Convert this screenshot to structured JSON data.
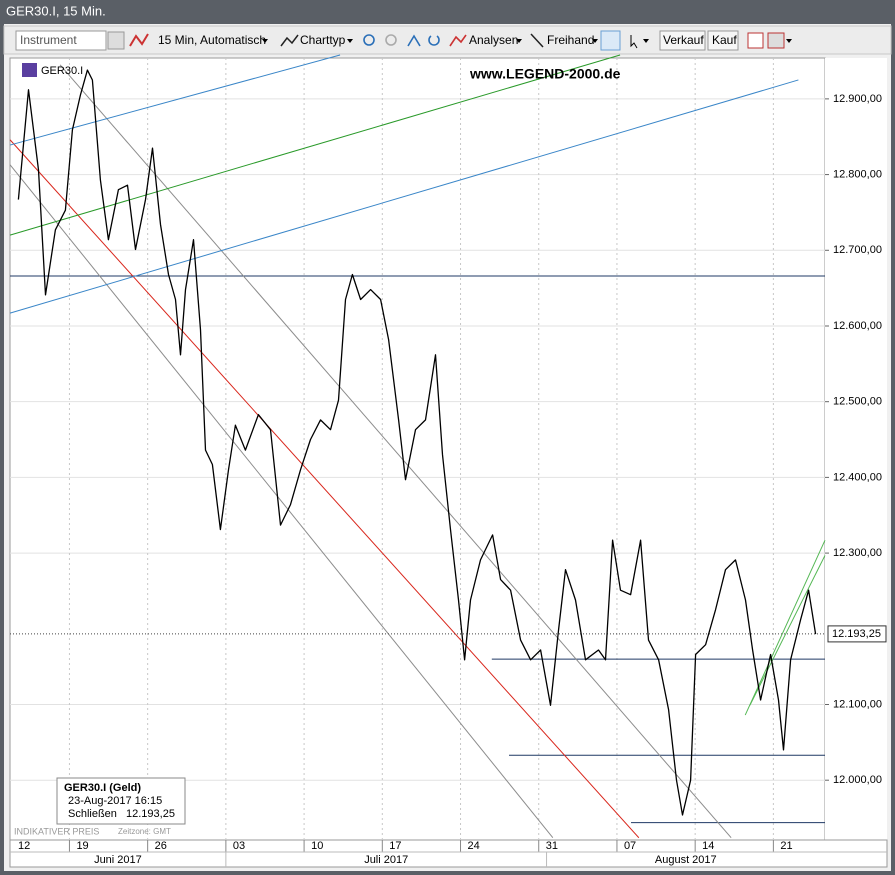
{
  "window": {
    "title": "GER30.I, 15 Min."
  },
  "toolbar": {
    "instrument": "Instrument",
    "interval": "15 Min,  Automatisch",
    "chart_type": "Charttyp",
    "analyses": "Analysen",
    "freehand": "Freihand",
    "sell": "Verkauf",
    "buy": "Kauf"
  },
  "watermark": "www.LEGEND-2000.de",
  "info_box": {
    "title": "GER30.I (Geld)",
    "datetime": "23-Aug-2017 16:15",
    "close_label": "Schließen",
    "close": "12.193,25"
  },
  "footer": {
    "price_note": "INDIKATIVER PREIS",
    "timezone": "Zeitzone: GMT"
  },
  "chart_data": {
    "type": "line",
    "series": [
      {
        "name": "GER30.I",
        "color": "#000000",
        "x": [
          1.74,
          2.38,
          3.02,
          3.47,
          4.1,
          4.74,
          5.19,
          5.7,
          6.15,
          6.47,
          6.98,
          7.49,
          8.13,
          8.71,
          9.22,
          9.86,
          10.31,
          10.82,
          11.33,
          11.78,
          12.1,
          12.42,
          12.93,
          13.38,
          13.7,
          14.14,
          14.65,
          15.17,
          15.61,
          16.25,
          17.08,
          17.85,
          18.49,
          19.13,
          19.77,
          20.41,
          21.05,
          21.69,
          22.2,
          22.65,
          23.09,
          23.61,
          24.25,
          24.89,
          25.4,
          26.04,
          26.48,
          27.12,
          27.76,
          28.4,
          28.85,
          29.36,
          29.87,
          30.26,
          30.64,
          31.28,
          32.05,
          32.56,
          33.2,
          33.84,
          34.48,
          35.12,
          35.75,
          36.27,
          36.71,
          37.35,
          37.99,
          38.82,
          39.27,
          39.72,
          40.23,
          40.87,
          41.51,
          42.02,
          42.66,
          43.3,
          43.81,
          44.19,
          44.71,
          45.03,
          45.67,
          46.3,
          46.94,
          47.58,
          48.22,
          48.67,
          49.18,
          49.82,
          50.33,
          50.65,
          51.1,
          51.74,
          52.25,
          52.7
        ],
        "values": [
          12767,
          12912,
          12806,
          12641,
          12727,
          12753,
          12859,
          12905,
          12938,
          12925,
          12793,
          12714,
          12780,
          12786,
          12701,
          12767,
          12835,
          12734,
          12668,
          12635,
          12562,
          12648,
          12714,
          12595,
          12436,
          12417,
          12331,
          12410,
          12469,
          12436,
          12483,
          12463,
          12337,
          12364,
          12410,
          12450,
          12476,
          12463,
          12502,
          12635,
          12668,
          12635,
          12648,
          12635,
          12582,
          12476,
          12397,
          12463,
          12476,
          12562,
          12430,
          12331,
          12238,
          12159,
          12238,
          12291,
          12324,
          12265,
          12251,
          12185,
          12159,
          12172,
          12099,
          12199,
          12278,
          12238,
          12159,
          12172,
          12159,
          12317,
          12251,
          12245,
          12317,
          12185,
          12159,
          12093,
          12000,
          11954,
          12000,
          12166,
          12179,
          12225,
          12278,
          12291,
          12238,
          12172,
          12106,
          12166,
          12106,
          12040,
          12159,
          12212,
          12251,
          12193
        ]
      }
    ],
    "current_price": {
      "value": 12193.25,
      "label": "12.193,25"
    },
    "drawings": [
      {
        "color": "#1f3864",
        "x": [
          1.2,
          53.3
        ],
        "values": [
          12666,
          12666
        ]
      },
      {
        "color": "#1f3864",
        "x": [
          32.0,
          53.3
        ],
        "values": [
          12160,
          12160
        ]
      },
      {
        "color": "#1f3864",
        "x": [
          33.1,
          53.3
        ],
        "values": [
          12033,
          12033
        ]
      },
      {
        "color": "#1f3864",
        "x": [
          40.9,
          53.3
        ],
        "values": [
          11944,
          11944
        ]
      },
      {
        "color": "#d9261c",
        "x": [
          1.2,
          41.4
        ],
        "values": [
          12846,
          11924
        ]
      },
      {
        "color": "#8c8c8c",
        "x": [
          1.2,
          35.9
        ],
        "values": [
          12813,
          11924
        ]
      },
      {
        "color": "#8c8c8c",
        "x": [
          4.4,
          47.3
        ],
        "values": [
          12945,
          11924
        ]
      },
      {
        "color": "#3a86c8",
        "x": [
          1.2,
          22.3
        ],
        "values": [
          12839,
          12958
        ]
      },
      {
        "color": "#3a86c8",
        "x": [
          1.2,
          51.6
        ],
        "values": [
          12617,
          12925
        ]
      },
      {
        "color": "#2a9a2a",
        "x": [
          1.2,
          40.2
        ],
        "values": [
          12720,
          12958
        ]
      },
      {
        "color": "#55b855",
        "x": [
          48.2,
          53.3
        ],
        "values": [
          12086,
          12317
        ]
      },
      {
        "color": "#55b855",
        "x": [
          48.5,
          53.3
        ],
        "values": [
          12099,
          12297
        ]
      }
    ],
    "xlim": [
      1.2,
      53.3
    ],
    "ylim": [
      11921,
      12954
    ],
    "xticks": [
      {
        "value": 0,
        "label": "12"
      },
      {
        "value": 5,
        "label": "19"
      },
      {
        "value": 10,
        "label": "26"
      },
      {
        "value": 15,
        "label": "03"
      },
      {
        "value": 20,
        "label": "10"
      },
      {
        "value": 25,
        "label": "17"
      },
      {
        "value": 30,
        "label": "24"
      },
      {
        "value": 35,
        "label": "31"
      },
      {
        "value": 40,
        "label": "07"
      },
      {
        "value": 45,
        "label": "14"
      },
      {
        "value": 50,
        "label": "21"
      }
    ],
    "months": [
      "Juni 2017",
      "Juli 2017",
      "August 2017"
    ],
    "yticks": [
      {
        "value": 12000,
        "label": "12.000,00"
      },
      {
        "value": 12100,
        "label": "12.100,00"
      },
      {
        "value": 12300,
        "label": "12.300,00"
      },
      {
        "value": 12400,
        "label": "12.400,00"
      },
      {
        "value": 12500,
        "label": "12.500,00"
      },
      {
        "value": 12600,
        "label": "12.600,00"
      },
      {
        "value": 12700,
        "label": "12.700,00"
      },
      {
        "value": 12800,
        "label": "12.800,00"
      },
      {
        "value": 12900,
        "label": "12.900,00"
      }
    ],
    "grid": true
  }
}
